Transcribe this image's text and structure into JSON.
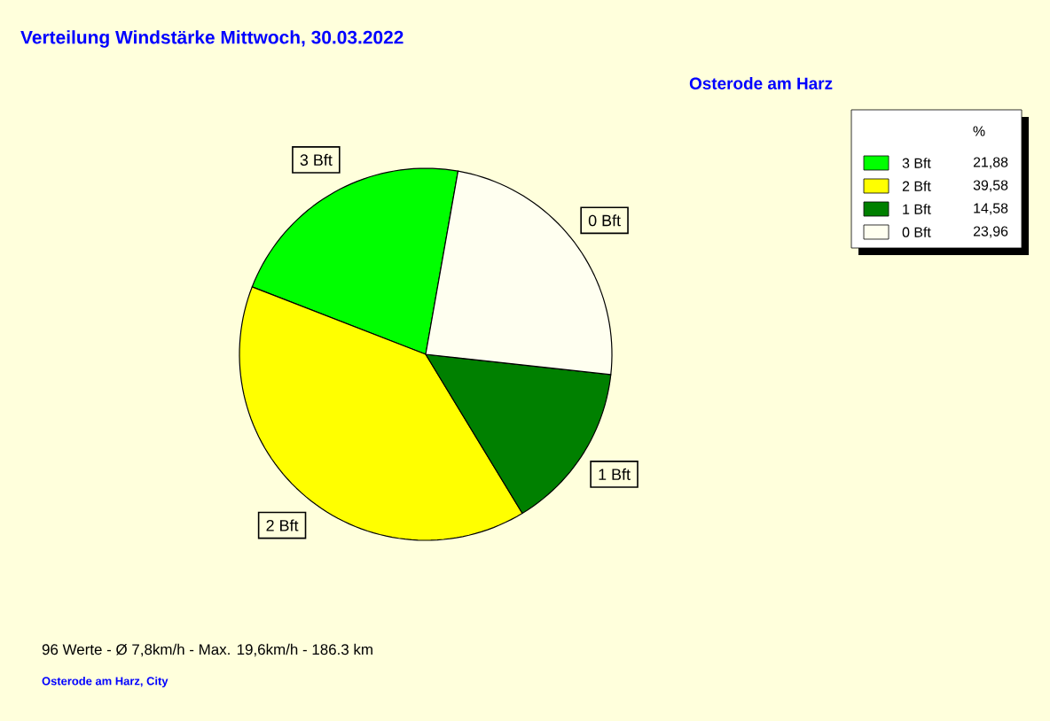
{
  "chart_data": {
    "type": "pie",
    "title": "Verteilung Windstärke  Mittwoch, 30.03.2022",
    "subtitle": "Osterode am Harz",
    "legend_title": "%",
    "legend": "top right",
    "categories": [
      "3 Bft",
      "2 Bft",
      "1 Bft",
      "0 Bft"
    ],
    "values": [
      21.88,
      39.58,
      14.58,
      23.96
    ],
    "value_labels": [
      "21,88",
      "39,58",
      "14,58",
      "23,96"
    ],
    "colors": [
      "#00ff00",
      "#ffff00",
      "#008000",
      "#fffff0"
    ],
    "annotations": [
      "96 Werte   -   Ø 7,8km/h  -  Max. 19,6km/h   -   186.3 km",
      "Osterode am Harz, City"
    ]
  }
}
